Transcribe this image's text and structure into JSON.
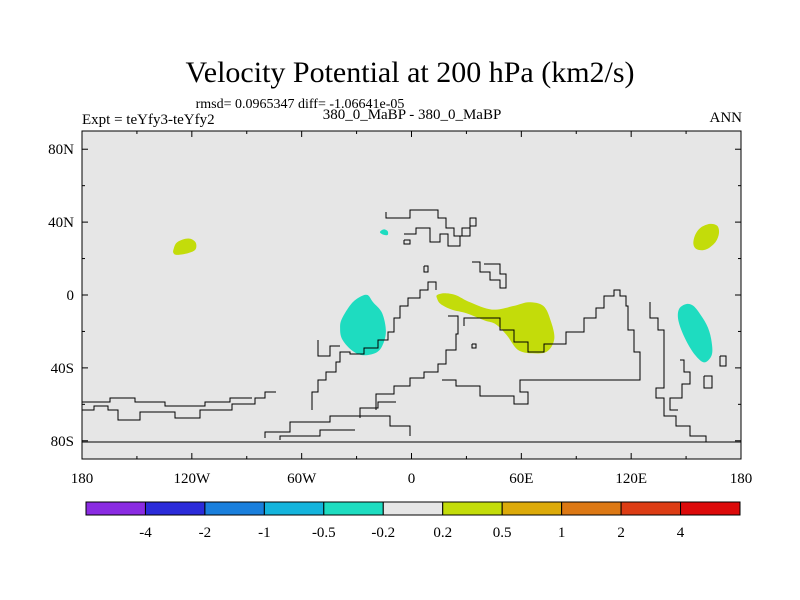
{
  "chart_data": {
    "type": "filled-contour-map",
    "title": "Velocity Potential at 200 hPa (km2/s)",
    "subtitle_stats": "rmsd= 0.0965347 diff= -1.06641e-05",
    "left_label": "Expt = teYfy3-teYfy2",
    "center_label": "380_0_MaBP - 380_0_MaBP",
    "right_label": "ANN",
    "x_axis": {
      "range": [
        -180,
        180
      ],
      "ticks": [
        {
          "value": -180,
          "label": "180"
        },
        {
          "value": -120,
          "label": "120W"
        },
        {
          "value": -60,
          "label": "60W"
        },
        {
          "value": 0,
          "label": "0"
        },
        {
          "value": 60,
          "label": "60E"
        },
        {
          "value": 120,
          "label": "120E"
        },
        {
          "value": 180,
          "label": "180"
        }
      ]
    },
    "y_axis": {
      "range": [
        -90,
        90
      ],
      "ticks": [
        {
          "value": 80,
          "label": "80N"
        },
        {
          "value": 40,
          "label": "40N"
        },
        {
          "value": 0,
          "label": "0"
        },
        {
          "value": -40,
          "label": "40S"
        },
        {
          "value": -80,
          "label": "80S"
        }
      ]
    },
    "colorbar": {
      "colors": [
        "#8a2be2",
        "#2b2bd9",
        "#1a7fdc",
        "#14b4dc",
        "#1edcc0",
        "#e6e6e6",
        "#c3dc0a",
        "#dcaa0a",
        "#dc7814",
        "#dc3c14",
        "#dc0a0a"
      ],
      "labels": [
        "-4",
        "-2",
        "-1",
        "-0.5",
        "-0.2",
        "0.2",
        "0.5",
        "1",
        "2",
        "4"
      ]
    },
    "anomalies": [
      {
        "name": "positive-blob-north-pacific",
        "category": "0.2 to 0.5",
        "color": "#c3dc0a",
        "lon": [
          -130,
          -128,
          -122,
          -118,
          -118,
          -122,
          -128,
          -130
        ],
        "lat": [
          25,
          29,
          31,
          29,
          25,
          23,
          22,
          23
        ]
      },
      {
        "name": "negative-blob-small-atlantic",
        "category": "-0.5 to -0.2",
        "color": "#1edcc0",
        "lon": [
          -17,
          -15,
          -13,
          -13,
          -15,
          -17
        ],
        "lat": [
          35,
          36,
          35,
          33,
          33,
          34
        ]
      },
      {
        "name": "negative-blob-south-atlantic",
        "category": "-0.5 to -0.2",
        "color": "#1edcc0",
        "lon": [
          -38,
          -33,
          -28,
          -24,
          -21,
          -16,
          -14,
          -16,
          -20,
          -27,
          -33,
          -38,
          -39
        ],
        "lat": [
          -13,
          -5,
          -1,
          0,
          -4,
          -10,
          -20,
          -28,
          -32,
          -33,
          -30,
          -24,
          -18
        ]
      },
      {
        "name": "positive-blob-indian-ocean",
        "category": "0.2 to 0.5",
        "color": "#c3dc0a",
        "lon": [
          14,
          18,
          24,
          32,
          44,
          56,
          64,
          72,
          76,
          78,
          74,
          66,
          58,
          52,
          46,
          40,
          30,
          22,
          16,
          14
        ],
        "lat": [
          0,
          1,
          0,
          -4,
          -8,
          -6,
          -4,
          -6,
          -14,
          -24,
          -31,
          -32,
          -30,
          -22,
          -16,
          -14,
          -10,
          -8,
          -5,
          -2
        ]
      },
      {
        "name": "negative-blob-west-pacific",
        "category": "-0.5 to -0.2",
        "color": "#1edcc0",
        "lon": [
          146,
          150,
          154,
          158,
          162,
          164,
          164,
          160,
          155,
          150,
          146
        ],
        "lat": [
          -8,
          -5,
          -6,
          -11,
          -18,
          -26,
          -33,
          -37,
          -33,
          -25,
          -15
        ]
      },
      {
        "name": "positive-blob-northwest-pacific",
        "category": "0.2 to 0.5",
        "color": "#c3dc0a",
        "lon": [
          155,
          158,
          163,
          167,
          168,
          166,
          161,
          156,
          154
        ],
        "lat": [
          33,
          37,
          39,
          38,
          34,
          29,
          25,
          25,
          28
        ]
      }
    ]
  }
}
